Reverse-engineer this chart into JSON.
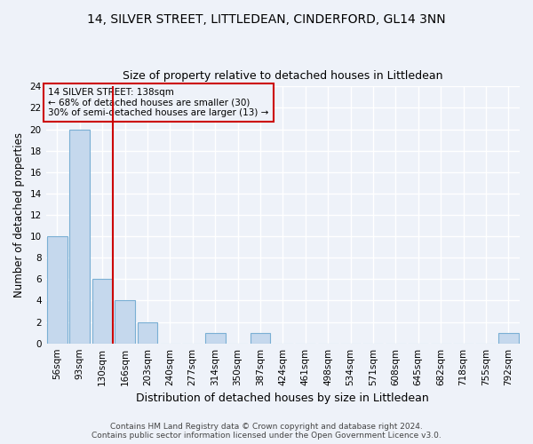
{
  "title": "14, SILVER STREET, LITTLEDEAN, CINDERFORD, GL14 3NN",
  "subtitle": "Size of property relative to detached houses in Littledean",
  "xlabel": "Distribution of detached houses by size in Littledean",
  "ylabel": "Number of detached properties",
  "categories": [
    "56sqm",
    "93sqm",
    "130sqm",
    "166sqm",
    "203sqm",
    "240sqm",
    "277sqm",
    "314sqm",
    "350sqm",
    "387sqm",
    "424sqm",
    "461sqm",
    "498sqm",
    "534sqm",
    "571sqm",
    "608sqm",
    "645sqm",
    "682sqm",
    "718sqm",
    "755sqm",
    "792sqm"
  ],
  "values": [
    10,
    20,
    6,
    4,
    2,
    0,
    0,
    1,
    0,
    1,
    0,
    0,
    0,
    0,
    0,
    0,
    0,
    0,
    0,
    0,
    1
  ],
  "bar_color": "#c5d8ed",
  "bar_edge_color": "#7aafd4",
  "subject_bar_index": 2,
  "subject_line_color": "#cc0000",
  "ylim": [
    0,
    24
  ],
  "yticks": [
    0,
    2,
    4,
    6,
    8,
    10,
    12,
    14,
    16,
    18,
    20,
    22,
    24
  ],
  "annotation_title": "14 SILVER STREET: 138sqm",
  "annotation_line1": "← 68% of detached houses are smaller (30)",
  "annotation_line2": "30% of semi-detached houses are larger (13) →",
  "annotation_box_color": "#cc0000",
  "footer_line1": "Contains HM Land Registry data © Crown copyright and database right 2024.",
  "footer_line2": "Contains public sector information licensed under the Open Government Licence v3.0.",
  "background_color": "#eef2f9",
  "grid_color": "#ffffff",
  "title_fontsize": 10,
  "subtitle_fontsize": 9,
  "tick_fontsize": 7.5,
  "ylabel_fontsize": 8.5,
  "xlabel_fontsize": 9
}
